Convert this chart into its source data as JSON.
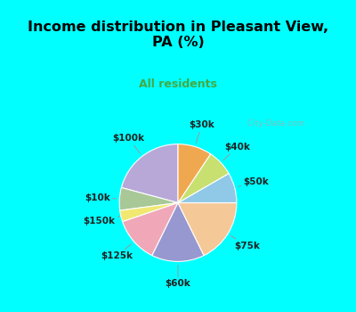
{
  "title": "Income distribution in Pleasant View,\nPA (%)",
  "subtitle": "All residents",
  "labels": [
    "$100k",
    "$10k",
    "$150k",
    "$125k",
    "$60k",
    "$75k",
    "$50k",
    "$40k",
    "$30k"
  ],
  "sizes": [
    20,
    6,
    3,
    12,
    14,
    17,
    8,
    7,
    9
  ],
  "colors": [
    "#b8a8d8",
    "#a8c898",
    "#f0e870",
    "#f0a8b8",
    "#9898d0",
    "#f5c898",
    "#90c8e8",
    "#c8e070",
    "#f0a850"
  ],
  "bg_outer": "#00ffff",
  "bg_chart": "#d8ede0",
  "title_color": "#000000",
  "subtitle_color": "#44aa44",
  "watermark": "  City-Data.com",
  "label_color": "#222222",
  "line_color": "#999999"
}
